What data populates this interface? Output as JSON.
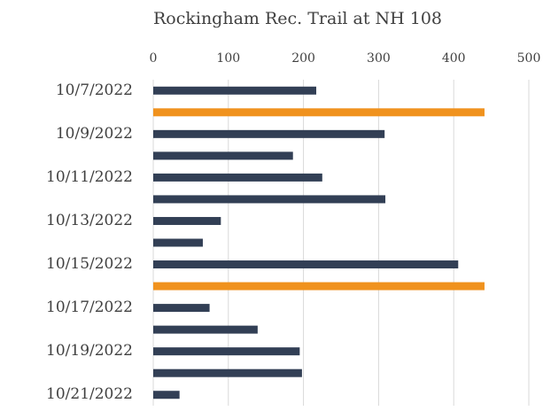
{
  "chart_data": {
    "type": "bar",
    "orientation": "horizontal",
    "title": "Rockingham Rec. Trail at NH 108",
    "categories": [
      "10/7/2022",
      null,
      "10/9/2022",
      null,
      "10/11/2022",
      null,
      "10/13/2022",
      null,
      "10/15/2022",
      null,
      "10/17/2022",
      null,
      "10/19/2022",
      null,
      "10/21/2022"
    ],
    "values": [
      217,
      441,
      308,
      186,
      225,
      309,
      90,
      66,
      406,
      441,
      75,
      139,
      195,
      198,
      35
    ],
    "colors": [
      "#323f55",
      "#f0921e",
      "#323f55",
      "#323f55",
      "#323f55",
      "#323f55",
      "#323f55",
      "#323f55",
      "#323f55",
      "#f0921e",
      "#323f55",
      "#323f55",
      "#323f55",
      "#323f55",
      "#323f55"
    ],
    "xlim": [
      0,
      500
    ],
    "xticks": [
      0,
      100,
      200,
      300,
      400,
      500
    ],
    "grid": true
  }
}
